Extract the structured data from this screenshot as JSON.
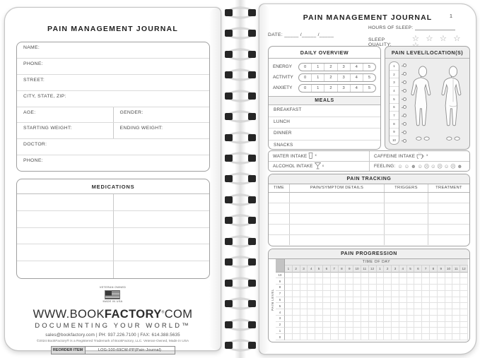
{
  "colors": {
    "page_border": "#c6c6c6",
    "box_border": "#a3a3a3",
    "row_line": "#dadada",
    "header_bar_bg": "#efefef",
    "grid_corner_bg": "#c3c3c3",
    "binding_hole": "#262626",
    "binding_wire": "#d6d6d6",
    "text": "#3c3c3c"
  },
  "binding": {
    "loop_count": 17
  },
  "left_page": {
    "title": "PAIN MANAGEMENT JOURNAL",
    "personal_info_rows": [
      [
        "NAME:"
      ],
      [
        "PHONE:"
      ],
      [
        "STREET:"
      ],
      [
        "CITY, STATE, ZIP:"
      ],
      [
        "AGE:",
        "GENDER:"
      ],
      [
        "STARTING WEIGHT:",
        "ENDING WEIGHT:"
      ],
      [
        "DOCTOR:"
      ],
      [
        "PHONE:"
      ]
    ],
    "medications": {
      "title": "MEDICATIONS",
      "rows": 5,
      "cols": 2
    },
    "branding": {
      "flag_top": "VETERAN OWNED",
      "flag_bottom": "MADE IN USA",
      "site_pre": "WWW.BOOK",
      "site_bold": "FACTORY",
      "site_reg": "®",
      "site_post": "COM",
      "tagline": "DOCUMENTING YOUR WORLD™",
      "contact": "sales@bookfactory.com  |  PH: 937.226.7100  |  FAX: 614.388.5635",
      "copyright": "©2024 BookFactory® is a Registered Trademark of BookFactory, LLC. Veteran-Owned, Made in USA",
      "reorder_label": "REORDER ITEM",
      "reorder_value": "LOG-100-69CW-PP(Pain-Journal)"
    }
  },
  "right_page": {
    "title": "PAIN MANAGEMENT JOURNAL",
    "page_number": "1",
    "date_label": "DATE:",
    "date_value": "_____ /_____ /_____",
    "hours_of_sleep_label": "HOURS OF SLEEP:",
    "sleep_quality_label": "SLEEP QUALITY:",
    "star_glyph": "☆",
    "star_count": 5,
    "daily_overview": {
      "title": "DAILY OVERVIEW",
      "metrics": [
        "ENERGY",
        "ACTIVITY",
        "ANXIETY"
      ],
      "scale": [
        "0",
        "1",
        "2",
        "3",
        "4",
        "5"
      ]
    },
    "meals": {
      "title": "MEALS",
      "items": [
        "BREAKFAST",
        "LUNCH",
        "DINNER",
        "SNACKS"
      ]
    },
    "intake": {
      "water_label": "WATER INTAKE",
      "caffeine_label": "CAFFEINE INTAKE",
      "alcohol_label": "ALCOHOL INTAKE",
      "multiplier": "x",
      "feeling_label": "FEELING:",
      "feeling_faces": [
        "☺",
        "☺",
        "☻",
        "☺",
        "☹",
        "☺",
        "☹",
        "☺",
        "☹",
        "☻"
      ]
    },
    "pain_location": {
      "title": "PAIN LEVEL/LOCATION(S)",
      "scale": [
        "1",
        "2",
        "3",
        "4",
        "5",
        "6",
        "7",
        "8",
        "9",
        "10"
      ]
    },
    "pain_tracking": {
      "title": "PAIN TRACKING",
      "columns": [
        "TIME",
        "PAIN/SYMPTOM DETAILS",
        "TRIGGERS",
        "TREATMENT"
      ],
      "empty_rows": 5
    },
    "pain_progression": {
      "title": "PAIN PROGRESSION",
      "time_of_day_label": "TIME OF DAY",
      "pain_level_label": "PAIN LEVEL",
      "hours": [
        "1",
        "2",
        "3",
        "4",
        "5",
        "6",
        "7",
        "8",
        "9",
        "10",
        "11",
        "12",
        "1",
        "2",
        "3",
        "4",
        "5",
        "6",
        "7",
        "8",
        "9",
        "10",
        "11",
        "12"
      ],
      "levels": [
        "10",
        "9",
        "8",
        "7",
        "6",
        "5",
        "4",
        "3",
        "2",
        "1",
        "0"
      ]
    }
  }
}
